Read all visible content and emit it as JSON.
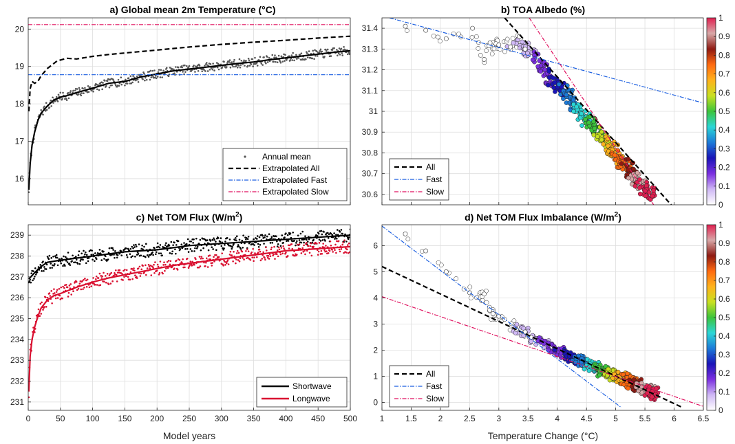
{
  "chart_data": [
    {
      "id": "a",
      "type": "line",
      "title": "a) Global mean 2m Temperature (°C)",
      "xlabel": "",
      "ylabel": "",
      "xlim": [
        0,
        500
      ],
      "ylim": [
        15.3,
        20.3
      ],
      "xticks": [
        0,
        50,
        100,
        150,
        200,
        250,
        300,
        350,
        400,
        450,
        500
      ],
      "yticks": [
        16,
        17,
        18,
        19,
        20
      ],
      "grid": true,
      "legend_position": "bottom-right",
      "series": [
        {
          "name": "Annual mean",
          "style": "dots",
          "color": "#555555",
          "points": [
            [
              1,
              15.6
            ],
            [
              5,
              16.8
            ],
            [
              10,
              17.3
            ],
            [
              20,
              17.8
            ],
            [
              30,
              18.0
            ],
            [
              50,
              18.2
            ],
            [
              75,
              18.3
            ],
            [
              100,
              18.45
            ],
            [
              125,
              18.6
            ],
            [
              150,
              18.65
            ],
            [
              175,
              18.75
            ],
            [
              200,
              18.8
            ],
            [
              225,
              18.9
            ],
            [
              250,
              18.95
            ],
            [
              275,
              19.0
            ],
            [
              300,
              19.05
            ],
            [
              325,
              19.1
            ],
            [
              350,
              19.15
            ],
            [
              375,
              19.2
            ],
            [
              400,
              19.25
            ],
            [
              425,
              19.3
            ],
            [
              450,
              19.35
            ],
            [
              475,
              19.4
            ],
            [
              500,
              19.45
            ]
          ]
        },
        {
          "name": "",
          "style": "solid",
          "color": "#000000",
          "points": [
            [
              1,
              15.7
            ],
            [
              3,
              16.4
            ],
            [
              6,
              16.9
            ],
            [
              10,
              17.25
            ],
            [
              15,
              17.55
            ],
            [
              20,
              17.75
            ],
            [
              30,
              17.95
            ],
            [
              40,
              18.1
            ],
            [
              50,
              18.18
            ],
            [
              60,
              18.22
            ],
            [
              75,
              18.3
            ],
            [
              100,
              18.42
            ],
            [
              125,
              18.55
            ],
            [
              150,
              18.6
            ],
            [
              175,
              18.72
            ],
            [
              200,
              18.8
            ],
            [
              225,
              18.88
            ],
            [
              250,
              18.93
            ],
            [
              275,
              18.98
            ],
            [
              300,
              19.03
            ],
            [
              325,
              19.08
            ],
            [
              350,
              19.12
            ],
            [
              375,
              19.18
            ],
            [
              400,
              19.23
            ],
            [
              425,
              19.28
            ],
            [
              450,
              19.33
            ],
            [
              475,
              19.38
            ],
            [
              500,
              19.42
            ]
          ]
        },
        {
          "name": "Extrapolated All",
          "style": "dashed",
          "color": "#000000",
          "points": [
            [
              1,
              17.8
            ],
            [
              3,
              18.4
            ],
            [
              6,
              18.6
            ],
            [
              10,
              18.55
            ],
            [
              15,
              18.6
            ],
            [
              20,
              18.75
            ],
            [
              30,
              18.95
            ],
            [
              45,
              19.15
            ],
            [
              60,
              19.22
            ],
            [
              75,
              19.2
            ],
            [
              100,
              19.27
            ],
            [
              125,
              19.32
            ],
            [
              150,
              19.36
            ],
            [
              175,
              19.4
            ],
            [
              200,
              19.44
            ],
            [
              250,
              19.52
            ],
            [
              300,
              19.59
            ],
            [
              350,
              19.65
            ],
            [
              400,
              19.7
            ],
            [
              450,
              19.76
            ],
            [
              500,
              19.81
            ]
          ]
        },
        {
          "name": "Extrapolated Fast",
          "style": "dashdot",
          "color": "#1a5ee0",
          "points": [
            [
              0,
              18.78
            ],
            [
              500,
              18.78
            ]
          ]
        },
        {
          "name": "Extrapolated Slow",
          "style": "dashdot",
          "color": "#e0115f",
          "points": [
            [
              0,
              20.12
            ],
            [
              500,
              20.12
            ]
          ]
        }
      ]
    },
    {
      "id": "b",
      "type": "scatter",
      "title": "b) TOA Albedo (%)",
      "xlabel": "",
      "ylabel": "",
      "xlim": [
        1,
        6.5
      ],
      "ylim": [
        30.55,
        31.45
      ],
      "xticks": [
        1,
        1.5,
        2,
        2.5,
        3,
        3.5,
        4,
        4.5,
        5,
        5.5,
        6,
        6.5
      ],
      "yticks": [
        30.6,
        30.7,
        30.8,
        30.9,
        31,
        31.1,
        31.2,
        31.3,
        31.4
      ],
      "ytick_labels": [
        "30.6",
        "30.7",
        "30.8",
        "30.9",
        "31",
        "31.1",
        "31.2",
        "31.3",
        "31.4"
      ],
      "grid": true,
      "legend_position": "bottom-left",
      "colorbar": {
        "min": 0,
        "max": 1,
        "ticks": [
          0,
          0.1,
          0.2,
          0.3,
          0.4,
          0.5,
          0.6,
          0.7,
          0.8,
          0.9,
          1
        ],
        "tick_labels": [
          "0",
          "0.1",
          "0.2",
          "0.3",
          "0.4",
          "0.5",
          "0.6",
          "0.7",
          "0.8",
          "0.9",
          "1"
        ]
      },
      "scatter_points": [
        [
          1.4,
          31.41
        ],
        [
          1.75,
          31.39
        ],
        [
          2.1,
          31.35
        ],
        [
          2.55,
          31.4
        ],
        [
          2.75,
          31.25
        ],
        [
          2.85,
          31.33
        ],
        [
          3.0,
          31.32
        ],
        [
          3.2,
          31.31
        ],
        [
          3.35,
          31.36
        ],
        [
          3.45,
          31.3
        ],
        [
          3.5,
          31.28
        ],
        [
          3.55,
          31.3
        ],
        [
          3.7,
          31.22
        ],
        [
          3.8,
          31.18
        ],
        [
          3.9,
          31.15
        ],
        [
          4.0,
          31.1
        ],
        [
          4.1,
          31.13
        ],
        [
          4.2,
          31.07
        ],
        [
          4.3,
          31.03
        ],
        [
          4.4,
          31.0
        ],
        [
          4.5,
          30.96
        ],
        [
          4.6,
          30.93
        ],
        [
          4.7,
          30.9
        ],
        [
          4.8,
          30.86
        ],
        [
          4.9,
          30.83
        ],
        [
          5.0,
          30.79
        ],
        [
          5.1,
          30.76
        ],
        [
          5.2,
          30.73
        ],
        [
          5.3,
          30.69
        ],
        [
          5.4,
          30.66
        ],
        [
          5.5,
          30.63
        ],
        [
          5.6,
          30.6
        ]
      ],
      "series": [
        {
          "name": "All",
          "style": "dashed",
          "color": "#000000",
          "points": [
            [
              3.1,
              31.45
            ],
            [
              5.95,
              30.55
            ]
          ]
        },
        {
          "name": "Fast",
          "style": "dashdot",
          "color": "#1a5ee0",
          "points": [
            [
              1.0,
              31.46
            ],
            [
              6.5,
              31.04
            ]
          ]
        },
        {
          "name": "Slow",
          "style": "dashdot",
          "color": "#e0115f",
          "points": [
            [
              3.52,
              31.45
            ],
            [
              5.65,
              30.55
            ]
          ]
        }
      ]
    },
    {
      "id": "c",
      "type": "line",
      "title": "c) Net TOM Flux (W/m",
      "title_sup": "2",
      "title_end": ")",
      "xlabel": "Model years",
      "ylabel": "",
      "xlim": [
        0,
        500
      ],
      "ylim": [
        230.6,
        239.5
      ],
      "xticks": [
        0,
        50,
        100,
        150,
        200,
        250,
        300,
        350,
        400,
        450,
        500
      ],
      "yticks": [
        231,
        232,
        233,
        234,
        235,
        236,
        237,
        238,
        239
      ],
      "grid": true,
      "legend_position": "bottom-right",
      "series": [
        {
          "name": "Shortwave",
          "style": "solid",
          "color": "#000000",
          "points": [
            [
              1,
              236.9
            ],
            [
              10,
              237.2
            ],
            [
              20,
              237.5
            ],
            [
              30,
              237.7
            ],
            [
              50,
              237.8
            ],
            [
              75,
              237.9
            ],
            [
              100,
              238.0
            ],
            [
              125,
              238.1
            ],
            [
              150,
              238.2
            ],
            [
              175,
              238.25
            ],
            [
              200,
              238.3
            ],
            [
              225,
              238.4
            ],
            [
              250,
              238.5
            ],
            [
              275,
              238.55
            ],
            [
              300,
              238.6
            ],
            [
              325,
              238.65
            ],
            [
              350,
              238.7
            ],
            [
              375,
              238.75
            ],
            [
              400,
              238.8
            ],
            [
              425,
              238.85
            ],
            [
              450,
              238.9
            ],
            [
              475,
              238.95
            ],
            [
              500,
              239.0
            ]
          ]
        },
        {
          "name": "Longwave",
          "style": "solid",
          "color": "#d91030",
          "points": [
            [
              1,
              231.5
            ],
            [
              3,
              233.2
            ],
            [
              6,
              234.0
            ],
            [
              10,
              234.6
            ],
            [
              15,
              235.1
            ],
            [
              20,
              235.5
            ],
            [
              30,
              235.9
            ],
            [
              40,
              236.1
            ],
            [
              50,
              236.2
            ],
            [
              75,
              236.5
            ],
            [
              100,
              236.75
            ],
            [
              125,
              236.95
            ],
            [
              150,
              237.1
            ],
            [
              175,
              237.25
            ],
            [
              200,
              237.4
            ],
            [
              225,
              237.55
            ],
            [
              250,
              237.65
            ],
            [
              275,
              237.75
            ],
            [
              300,
              237.85
            ],
            [
              325,
              237.95
            ],
            [
              350,
              238.05
            ],
            [
              375,
              238.15
            ],
            [
              400,
              238.25
            ],
            [
              425,
              238.3
            ],
            [
              450,
              238.35
            ],
            [
              475,
              238.4
            ],
            [
              500,
              238.45
            ]
          ]
        }
      ]
    },
    {
      "id": "d",
      "type": "scatter",
      "title": "d) Net TOM Flux Imbalance (W/m",
      "title_sup": "2",
      "title_end": ")",
      "xlabel": "Temperature Change (°C)",
      "ylabel": "",
      "xlim": [
        1,
        6.5
      ],
      "ylim": [
        -0.3,
        6.8
      ],
      "xticks": [
        1,
        1.5,
        2,
        2.5,
        3,
        3.5,
        4,
        4.5,
        5,
        5.5,
        6,
        6.5
      ],
      "xtick_labels": [
        "1",
        "1.5",
        "2",
        "2.5",
        "3",
        "3.5",
        "4",
        "4.5",
        "5",
        "5.5",
        "6",
        "6.5"
      ],
      "yticks": [
        0,
        1,
        2,
        3,
        4,
        5,
        6
      ],
      "grid": true,
      "legend_position": "bottom-left",
      "colorbar": {
        "min": 0,
        "max": 1,
        "ticks": [
          0,
          0.1,
          0.2,
          0.3,
          0.4,
          0.5,
          0.6,
          0.7,
          0.8,
          0.9,
          1
        ],
        "tick_labels": [
          "0",
          "0.1",
          "0.2",
          "0.3",
          "0.4",
          "0.5",
          "0.6",
          "0.7",
          "0.8",
          "0.9",
          "1"
        ]
      },
      "scatter_points": [
        [
          1.4,
          6.45
        ],
        [
          1.75,
          5.8
        ],
        [
          2.1,
          5.0
        ],
        [
          2.5,
          4.2
        ],
        [
          2.75,
          4.15
        ],
        [
          2.9,
          3.4
        ],
        [
          3.0,
          3.3
        ],
        [
          3.3,
          2.8
        ],
        [
          3.45,
          2.7
        ],
        [
          3.55,
          2.5
        ],
        [
          3.7,
          2.3
        ],
        [
          3.85,
          2.2
        ],
        [
          4.0,
          2.0
        ],
        [
          4.1,
          1.9
        ],
        [
          4.2,
          1.75
        ],
        [
          4.3,
          1.65
        ],
        [
          4.4,
          1.55
        ],
        [
          4.5,
          1.45
        ],
        [
          4.6,
          1.35
        ],
        [
          4.7,
          1.3
        ],
        [
          4.8,
          1.2
        ],
        [
          4.9,
          1.1
        ],
        [
          5.0,
          1.0
        ],
        [
          5.1,
          0.95
        ],
        [
          5.2,
          0.85
        ],
        [
          5.3,
          0.75
        ],
        [
          5.4,
          0.65
        ],
        [
          5.5,
          0.55
        ],
        [
          5.6,
          0.4
        ],
        [
          5.7,
          0.3
        ]
      ],
      "series": [
        {
          "name": "All",
          "style": "dashed",
          "color": "#000000",
          "points": [
            [
              1.0,
              5.2
            ],
            [
              6.15,
              -0.2
            ]
          ]
        },
        {
          "name": "Fast",
          "style": "dashdot",
          "color": "#1a5ee0",
          "points": [
            [
              1.0,
              6.75
            ],
            [
              5.1,
              -0.2
            ]
          ]
        },
        {
          "name": "Slow",
          "style": "dashdot",
          "color": "#e0115f",
          "points": [
            [
              1.0,
              4.05
            ],
            [
              6.5,
              -0.15
            ]
          ]
        }
      ]
    }
  ]
}
